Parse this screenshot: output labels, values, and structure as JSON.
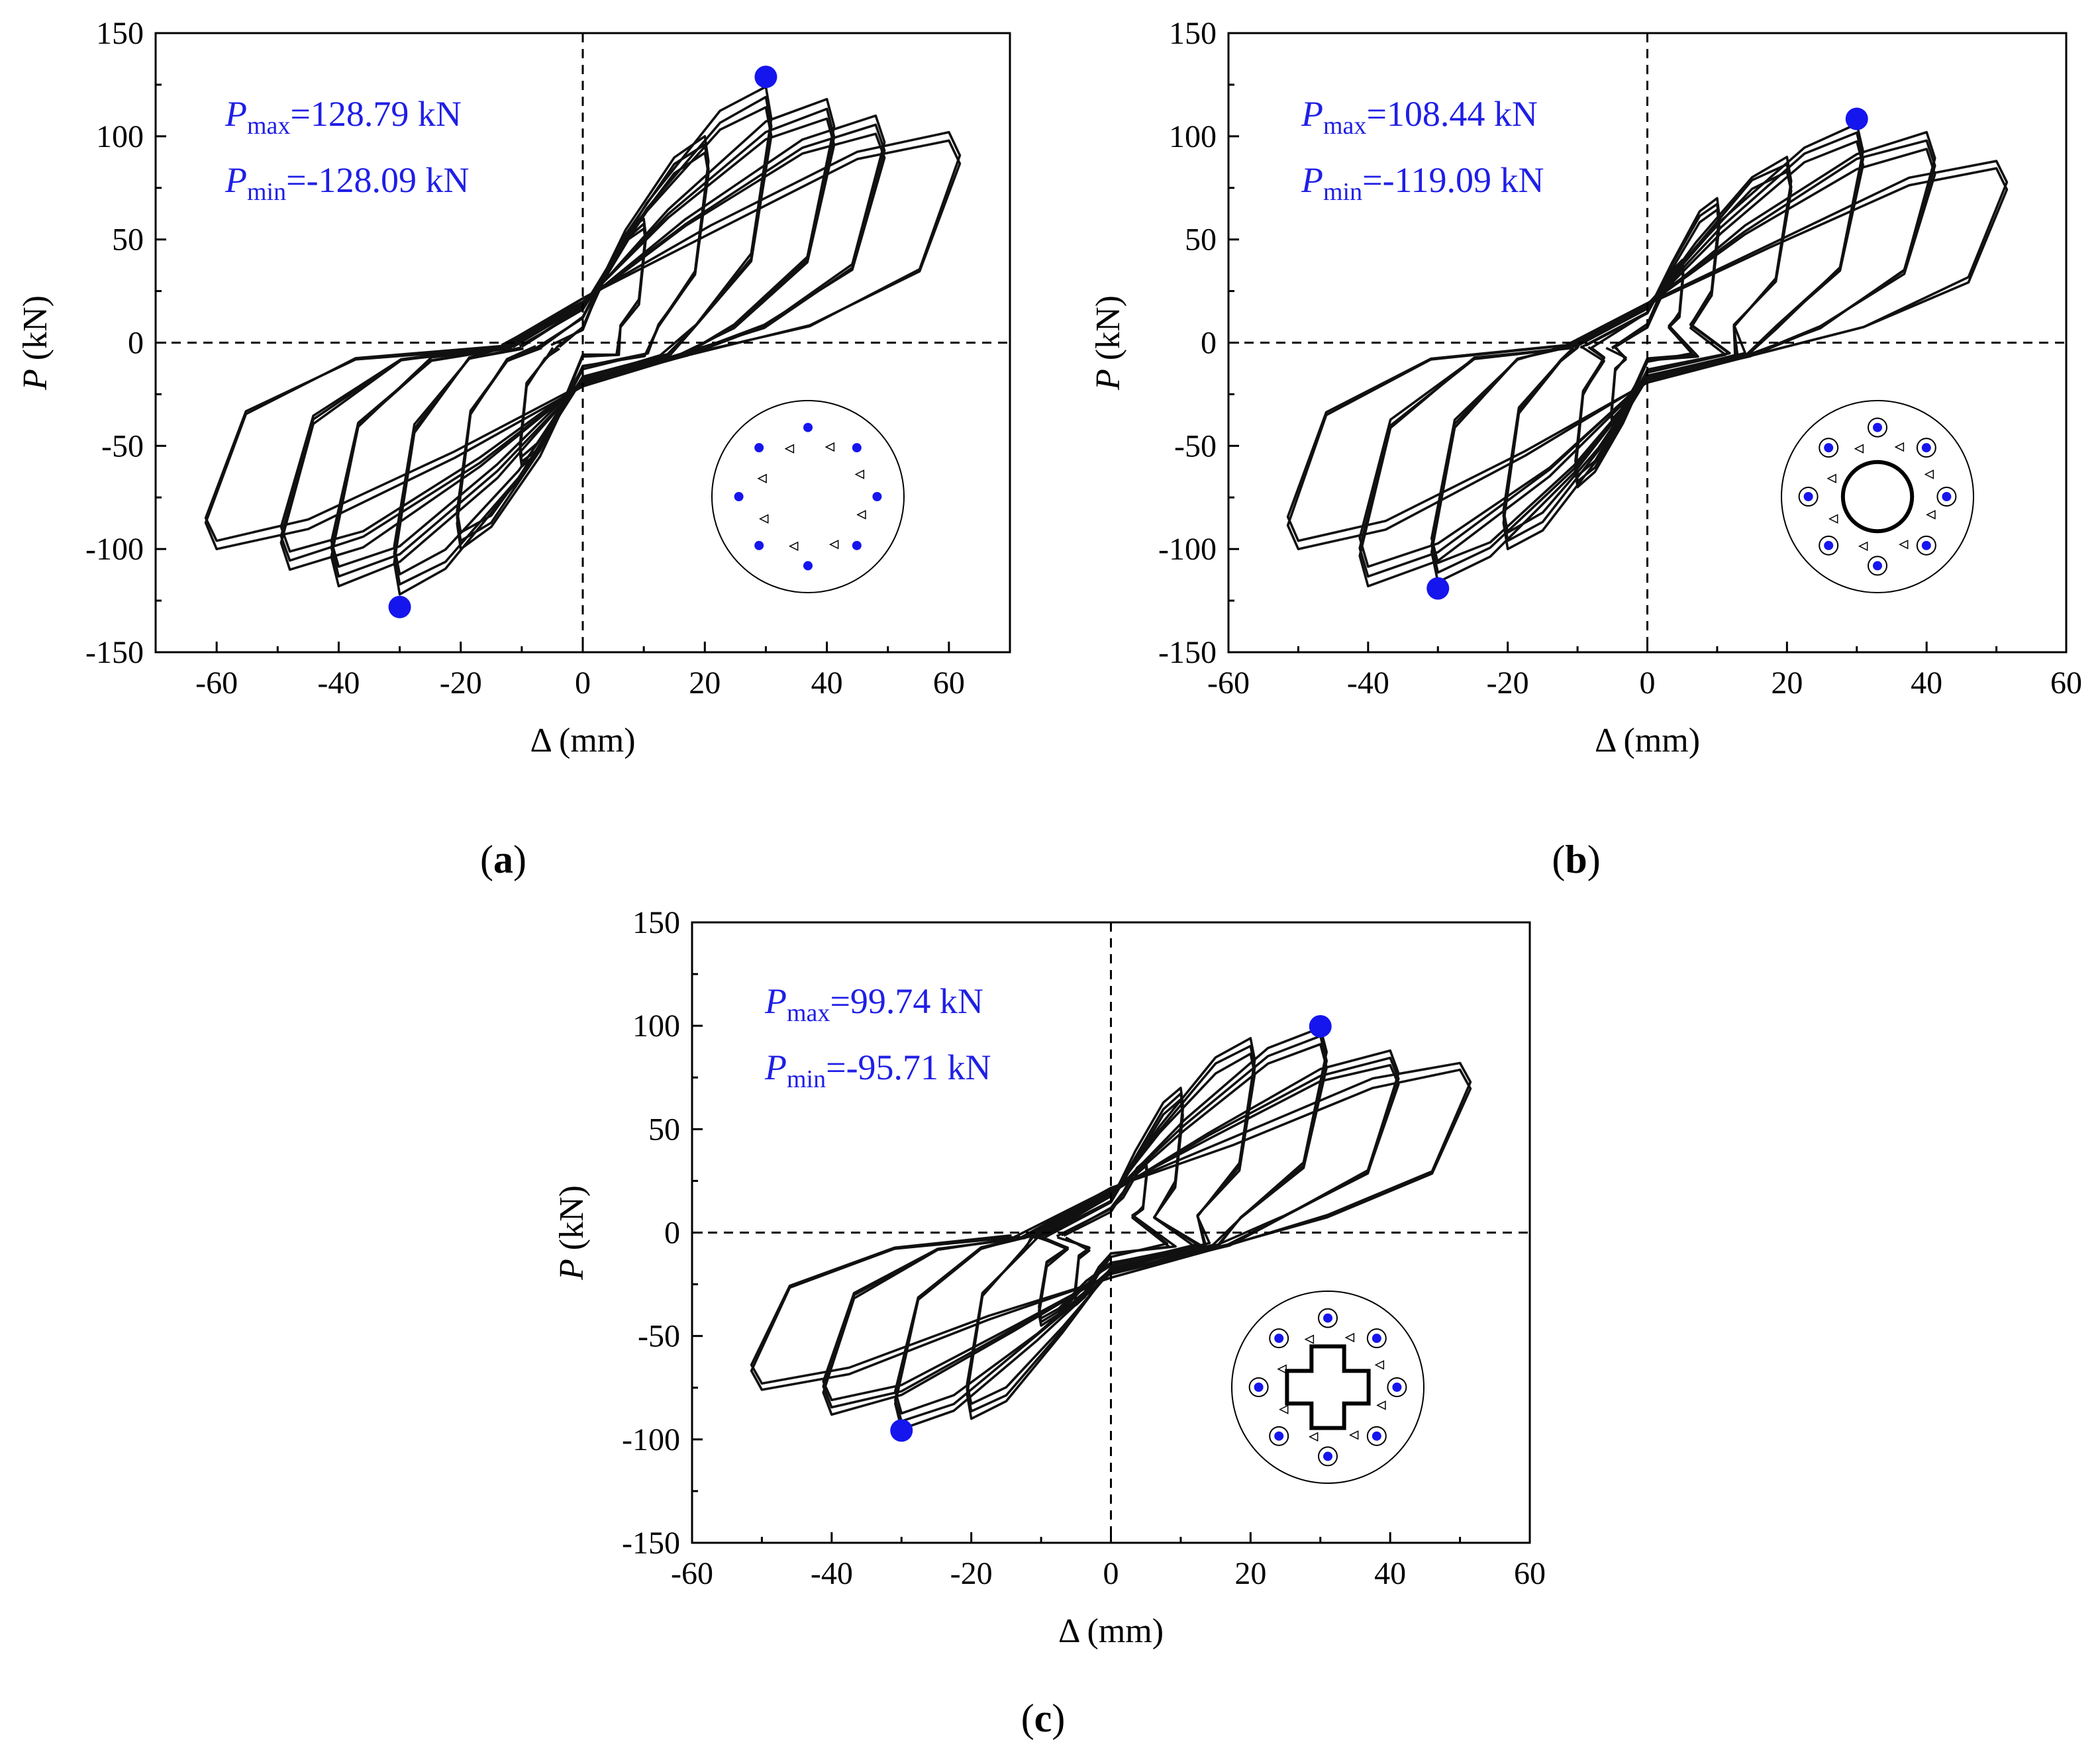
{
  "figure": {
    "colors": {
      "annotation": "#1f1fe6",
      "marker": "#1515ee",
      "curve": "#111111",
      "axis": "#000000"
    }
  },
  "chart_data": [
    {
      "panel": "a",
      "panel_label": "a",
      "type": "line",
      "title": "",
      "xlabel": "Δ (mm)",
      "ylabel": "P (kN)",
      "xlim": [
        -70,
        70
      ],
      "ylim": [
        -150,
        150
      ],
      "xticks": [
        -60,
        -40,
        -20,
        0,
        20,
        40,
        60
      ],
      "yticks": [
        -150,
        -100,
        -50,
        0,
        50,
        100,
        150
      ],
      "pmax_label": {
        "var": "P",
        "sub": "max",
        "value": "=128.79 kN"
      },
      "pmin_label": {
        "var": "P",
        "sub": "min",
        "value": "=-128.09 kN"
      },
      "peak_points": [
        {
          "name": "Pmax",
          "x": 30,
          "y": 128.79
        },
        {
          "name": "Pmin",
          "x": -30,
          "y": -128.09
        }
      ],
      "hysteresis_loops": [
        {
          "disp": 10,
          "pos_peak": 60,
          "neg_peak": -60,
          "pinch": 12,
          "cycles": 3
        },
        {
          "disp": 20,
          "pos_peak": 100,
          "neg_peak": -100,
          "pinch": 22,
          "cycles": 3
        },
        {
          "disp": 30,
          "pos_peak": 124,
          "neg_peak": -122,
          "pinch": 30,
          "cycles": 3
        },
        {
          "disp": 40,
          "pos_peak": 118,
          "neg_peak": -118,
          "pinch": 34,
          "cycles": 3
        },
        {
          "disp": 48,
          "pos_peak": 110,
          "neg_peak": -110,
          "pinch": 36,
          "cycles": 3
        },
        {
          "disp": 60,
          "pos_peak": 102,
          "neg_peak": -100,
          "pinch": 38,
          "cycles": 2
        }
      ],
      "section": "a"
    },
    {
      "panel": "b",
      "panel_label": "b",
      "type": "line",
      "title": "",
      "xlabel": "Δ (mm)",
      "ylabel": "P (kN)",
      "xlim": [
        -60,
        60
      ],
      "ylim": [
        -150,
        150
      ],
      "xticks": [
        -60,
        -40,
        -20,
        0,
        20,
        40,
        60
      ],
      "yticks": [
        -150,
        -100,
        -50,
        0,
        50,
        100,
        150
      ],
      "pmax_label": {
        "var": "P",
        "sub": "max",
        "value": "=108.44 kN"
      },
      "pmin_label": {
        "var": "P",
        "sub": "min",
        "value": "=-119.09 kN"
      },
      "peak_points": [
        {
          "name": "Pmax",
          "x": 30,
          "y": 108.44
        },
        {
          "name": "Pmin",
          "x": -30,
          "y": -119.09
        }
      ],
      "hysteresis_loops": [
        {
          "disp": 5,
          "pos_peak": 40,
          "neg_peak": -40,
          "pinch": 15,
          "cycles": 3
        },
        {
          "disp": 10,
          "pos_peak": 70,
          "neg_peak": -70,
          "pinch": 25,
          "cycles": 3
        },
        {
          "disp": 20,
          "pos_peak": 90,
          "neg_peak": -100,
          "pinch": 30,
          "cycles": 3
        },
        {
          "disp": 30,
          "pos_peak": 106,
          "neg_peak": -116,
          "pinch": 32,
          "cycles": 3
        },
        {
          "disp": 40,
          "pos_peak": 102,
          "neg_peak": -118,
          "pinch": 33,
          "cycles": 3
        },
        {
          "disp": 50,
          "pos_peak": 88,
          "neg_peak": -100,
          "pinch": 35,
          "cycles": 2
        }
      ],
      "section": "b"
    },
    {
      "panel": "c",
      "panel_label": "c",
      "type": "line",
      "title": "",
      "xlabel": "Δ (mm)",
      "ylabel": "P (kN)",
      "xlim": [
        -60,
        60
      ],
      "ylim": [
        -150,
        150
      ],
      "xticks": [
        -60,
        -40,
        -20,
        0,
        20,
        40,
        60
      ],
      "yticks": [
        -150,
        -100,
        -50,
        0,
        50,
        100,
        150
      ],
      "pmax_label": {
        "var": "P",
        "sub": "max",
        "value": "=99.74 kN"
      },
      "pmin_label": {
        "var": "P",
        "sub": "min",
        "value": "=-95.71 kN"
      },
      "peak_points": [
        {
          "name": "Pmax",
          "x": 30,
          "y": 99.74
        },
        {
          "name": "Pmin",
          "x": -30,
          "y": -95.71
        }
      ],
      "hysteresis_loops": [
        {
          "disp": 5,
          "pos_peak": 35,
          "neg_peak": -35,
          "pinch": 20,
          "cycles": 3
        },
        {
          "disp": 10,
          "pos_peak": 70,
          "neg_peak": -45,
          "pinch": 28,
          "cycles": 3
        },
        {
          "disp": 20,
          "pos_peak": 94,
          "neg_peak": -90,
          "pinch": 32,
          "cycles": 3
        },
        {
          "disp": 30,
          "pos_peak": 99,
          "neg_peak": -95,
          "pinch": 34,
          "cycles": 3
        },
        {
          "disp": 40,
          "pos_peak": 88,
          "neg_peak": -88,
          "pinch": 36,
          "cycles": 3
        },
        {
          "disp": 50,
          "pos_peak": 82,
          "neg_peak": -76,
          "pinch": 38,
          "cycles": 2
        }
      ],
      "section": "c"
    }
  ]
}
